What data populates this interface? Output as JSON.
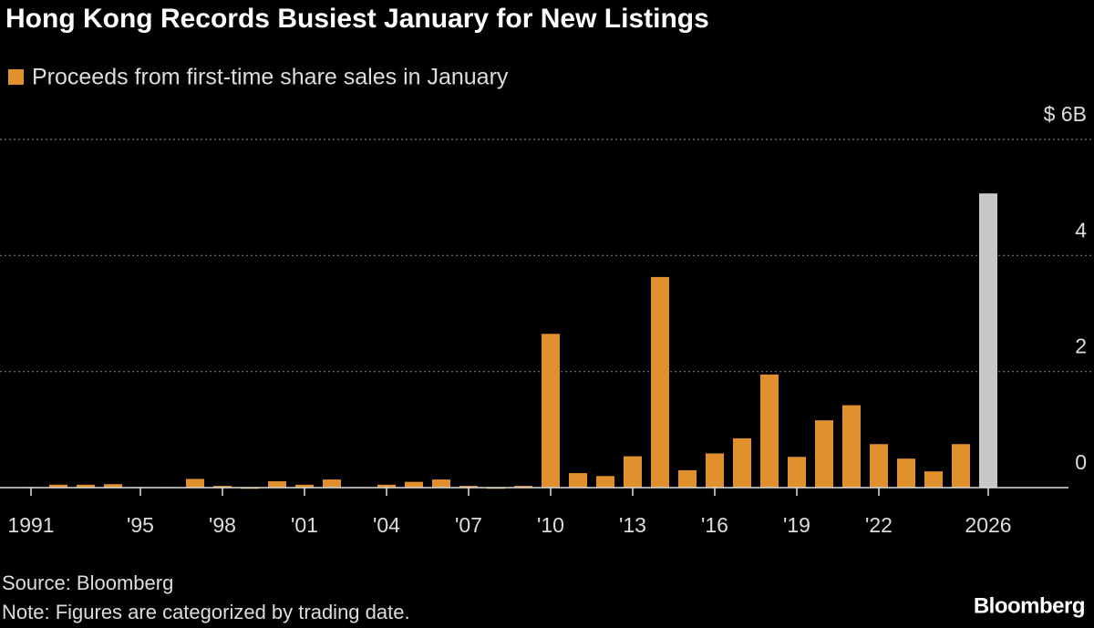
{
  "chart_data": {
    "type": "bar",
    "title": "Hong Kong Records Busiest January for New Listings",
    "legend": "Proceeds from first-time share sales in January",
    "source": "Source: Bloomberg",
    "note": "Note: Figures are categorized by trading date.",
    "brand": "Bloomberg",
    "categories": [
      "1991",
      null,
      null,
      null,
      "'95",
      null,
      null,
      "'98",
      null,
      null,
      "'01",
      null,
      null,
      "'04",
      null,
      null,
      "'07",
      null,
      null,
      "'10",
      null,
      null,
      "'13",
      null,
      null,
      "'16",
      null,
      null,
      "'19",
      null,
      null,
      "'22",
      null,
      null,
      null,
      "2026"
    ],
    "values": [
      0.01,
      0.05,
      0.05,
      0.06,
      0.01,
      0.01,
      0.15,
      0.03,
      -0.02,
      0.11,
      0.05,
      0.14,
      0.01,
      0.05,
      0.1,
      0.14,
      0.03,
      -0.02,
      0.03,
      2.65,
      0.25,
      0.2,
      0.54,
      3.63,
      0.3,
      0.59,
      0.85,
      1.95,
      0.53,
      1.16,
      1.42,
      0.75,
      0.5,
      0.28,
      0.75,
      5.07
    ],
    "color": "#e0902c",
    "colors": [
      "#e0902c",
      "#e0902c",
      "#e0902c",
      "#e0902c",
      "#e0902c",
      "#e0902c",
      "#e0902c",
      "#e0902c",
      "#e0902c",
      "#e0902c",
      "#e0902c",
      "#e0902c",
      "#e0902c",
      "#e0902c",
      "#e0902c",
      "#e0902c",
      "#e0902c",
      "#e0902c",
      "#e0902c",
      "#e0902c",
      "#e0902c",
      "#e0902c",
      "#e0902c",
      "#e0902c",
      "#e0902c",
      "#e0902c",
      "#e0902c",
      "#e0902c",
      "#e0902c",
      "#e0902c",
      "#e0902c",
      "#e0902c",
      "#e0902c",
      "#e0902c",
      "#e0902c",
      "#c8c8c8"
    ],
    "ylim": [
      0,
      6
    ],
    "yticks": [
      0,
      2,
      4,
      {
        "value": 6,
        "label": "$ 6B"
      }
    ],
    "grid": true
  }
}
